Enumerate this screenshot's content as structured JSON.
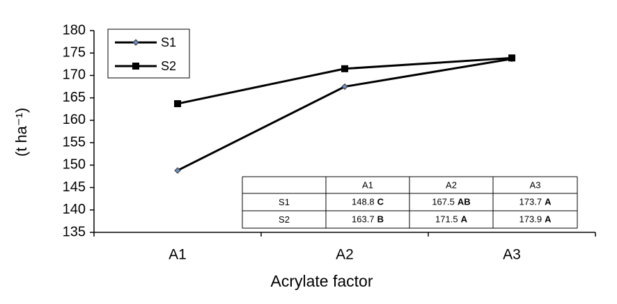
{
  "chart_data": {
    "type": "line",
    "x_label": "Acrylate factor",
    "y_label": "(t ha⁻¹)",
    "categories": [
      "A1",
      "A2",
      "A3"
    ],
    "series": [
      {
        "name": "S1",
        "color": "#000000",
        "marker": "diamond",
        "marker_color": "#6a8fc4",
        "values": [
          148.8,
          167.5,
          173.7
        ]
      },
      {
        "name": "S2",
        "color": "#000000",
        "marker": "square",
        "marker_color": "#000000",
        "values": [
          163.7,
          171.5,
          173.9
        ]
      }
    ],
    "ylim": [
      135,
      180
    ],
    "yticks": [
      135,
      140,
      145,
      150,
      155,
      160,
      165,
      170,
      175,
      180
    ],
    "grid": false,
    "legend": "top-left",
    "table": {
      "columns": [
        "A1",
        "A2",
        "A3"
      ],
      "rows": [
        {
          "label": "S1",
          "cells": [
            {
              "value": 148.8,
              "group": "C"
            },
            {
              "value": 167.5,
              "group": "AB"
            },
            {
              "value": 173.7,
              "group": "A"
            }
          ]
        },
        {
          "label": "S2",
          "cells": [
            {
              "value": 163.7,
              "group": "B"
            },
            {
              "value": 171.5,
              "group": "A"
            },
            {
              "value": 173.9,
              "group": "A"
            }
          ]
        }
      ]
    }
  }
}
